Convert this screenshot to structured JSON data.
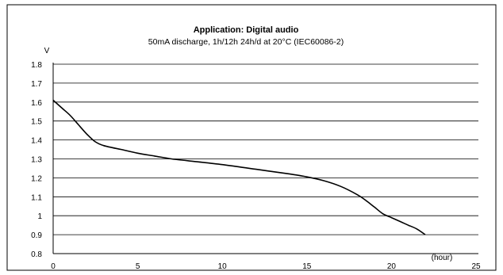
{
  "chart_data": {
    "type": "line",
    "title": "Application: Digital audio",
    "subtitle": "50mA discharge, 1h/12h 24h/d at 20°C (IEC60086-2)",
    "ylabel": "V",
    "xlabel": "(hour)",
    "xlim": [
      0,
      25
    ],
    "ylim": [
      0.8,
      1.8
    ],
    "x_ticks": [
      0,
      5,
      10,
      15,
      20,
      25
    ],
    "y_ticks": [
      0.8,
      0.9,
      1,
      1.1,
      1.2,
      1.3,
      1.4,
      1.5,
      1.6,
      1.7,
      1.8
    ],
    "x_tick_labels": [
      "0",
      "5",
      "10",
      "15",
      "20",
      "25"
    ],
    "y_tick_labels": [
      "0.8",
      "0.9",
      "1",
      "1.1",
      "1.2",
      "1.3",
      "1.4",
      "1.5",
      "1.6",
      "1.7",
      "1.8"
    ],
    "grid": "horizontal",
    "series": [
      {
        "color": "#000000",
        "x": [
          0,
          0.5,
          1,
          1.5,
          2,
          2.5,
          3,
          4,
          5,
          6,
          7,
          8,
          10,
          12,
          14,
          15,
          16,
          17,
          18,
          18.5,
          19,
          19.5,
          20,
          20.5,
          21,
          21.5,
          22
        ],
        "y": [
          1.61,
          1.57,
          1.53,
          1.48,
          1.43,
          1.39,
          1.37,
          1.35,
          1.33,
          1.315,
          1.3,
          1.29,
          1.27,
          1.245,
          1.22,
          1.205,
          1.185,
          1.155,
          1.11,
          1.08,
          1.045,
          1.01,
          0.99,
          0.97,
          0.95,
          0.93,
          0.9
        ]
      }
    ]
  }
}
